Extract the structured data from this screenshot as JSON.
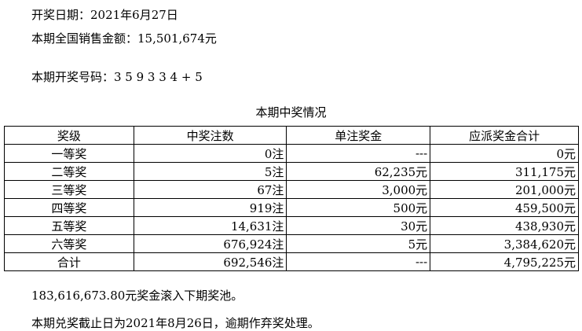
{
  "draw_date": "开奖日期：2021年6月27日",
  "sales": "本期全国销售金额：15,501,674元",
  "numbers": "本期开奖号码：3 5 9 3 3 4 + 5",
  "table_title": "本期中奖情况",
  "headers": [
    "奖级",
    "中奖注数",
    "单注奖金",
    "应派奖金合计"
  ],
  "rows": [
    [
      "一等奖",
      "0注",
      "---",
      "0元"
    ],
    [
      "二等奖",
      "5注",
      "62,235元",
      "311,175元"
    ],
    [
      "三等奖",
      "67注",
      "3,000元",
      "201,000元"
    ],
    [
      "四等奖",
      "919注",
      "500元",
      "459,500元"
    ],
    [
      "五等奖",
      "14,631注",
      "30元",
      "438,930元"
    ],
    [
      "六等奖",
      "676,924注",
      "5元",
      "3,384,620元"
    ],
    [
      "合计",
      "692,546注",
      "---",
      "4,795,225元"
    ]
  ],
  "pool": "183,616,673.80元奖金滚入下期奖池。",
  "deadline": "本期兑奖截止日为2021年8月26日，逾期作弃奖处理。"
}
